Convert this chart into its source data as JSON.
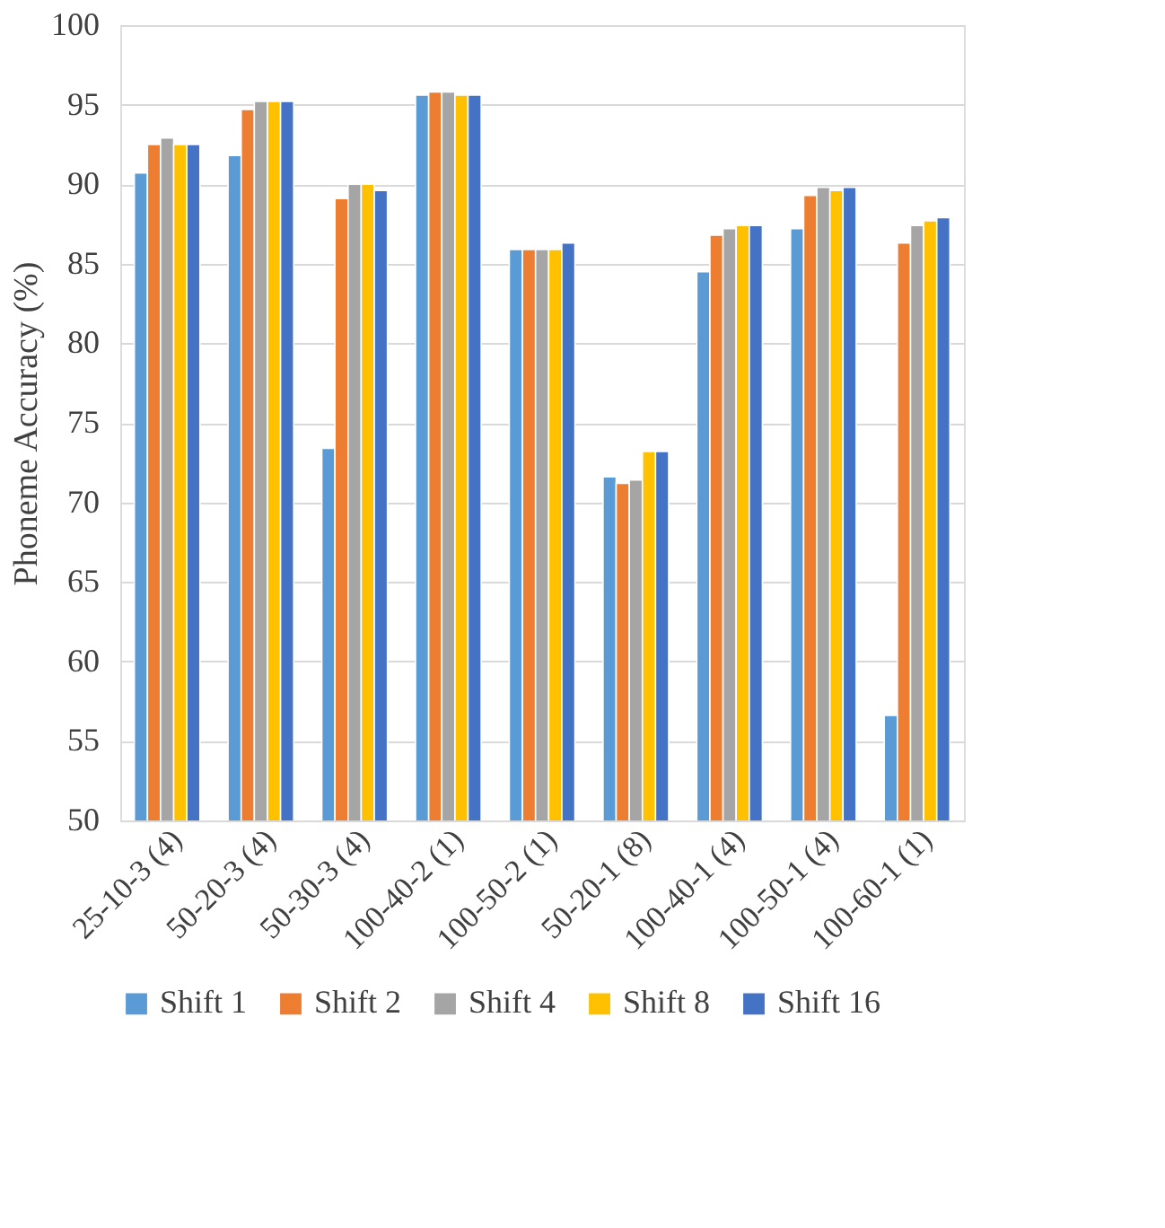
{
  "chart_data": {
    "type": "bar",
    "ylabel": "Phoneme Accuracy (%)",
    "categories": [
      "25-10-3 (4)",
      "50-20-3 (4)",
      "50-30-3 (4)",
      "100-40-2 (1)",
      "100-50-2 (1)",
      "50-20-1 (8)",
      "100-40-1 (4)",
      "100-50-1 (4)",
      "100-60-1 (1)"
    ],
    "series": [
      {
        "name": "Shift 1",
        "color": "#5b9bd5",
        "values": [
          90.7,
          91.8,
          73.4,
          95.6,
          85.9,
          71.6,
          84.5,
          87.2,
          56.6
        ]
      },
      {
        "name": "Shift 2",
        "color": "#ed7d31",
        "values": [
          92.5,
          94.7,
          89.1,
          95.8,
          85.9,
          71.2,
          86.8,
          89.3,
          86.3
        ]
      },
      {
        "name": "Shift 4",
        "color": "#a5a5a5",
        "values": [
          92.9,
          95.2,
          90.0,
          95.8,
          85.9,
          71.4,
          87.2,
          89.8,
          87.4
        ]
      },
      {
        "name": "Shift 8",
        "color": "#ffc000",
        "values": [
          92.5,
          95.2,
          90.0,
          95.6,
          85.9,
          73.2,
          87.4,
          89.6,
          87.7
        ]
      },
      {
        "name": "Shift 16",
        "color": "#4472c4",
        "values": [
          92.5,
          95.2,
          89.6,
          95.6,
          86.3,
          73.2,
          87.4,
          89.8,
          87.9
        ]
      }
    ],
    "ylim": [
      50,
      100
    ],
    "yticks": [
      50,
      55,
      60,
      65,
      70,
      75,
      80,
      85,
      90,
      95,
      100
    ],
    "grid": "y",
    "legend": "bottom"
  }
}
